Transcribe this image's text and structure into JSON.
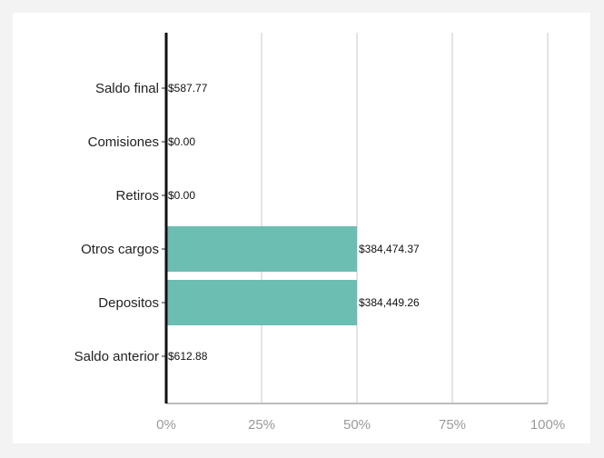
{
  "chart_data": {
    "type": "bar",
    "orientation": "horizontal",
    "title": "",
    "xlabel": "",
    "ylabel": "",
    "categories": [
      "Saldo final",
      "Comisiones",
      "Retiros",
      "Otros cargos",
      "Depositos",
      "Saldo anterior"
    ],
    "values_pct": [
      0,
      0,
      0,
      50,
      50,
      0
    ],
    "value_labels": [
      "$587.77",
      "$0.00",
      "$0.00",
      "$384,474.37",
      "$384,449.26",
      "$612.88"
    ],
    "x_ticks": [
      "0%",
      "25%",
      "50%",
      "75%",
      "100%"
    ],
    "xlim": [
      0,
      100
    ],
    "grid": "vertical",
    "legend": "none",
    "bar_color": "#6cbdb2"
  }
}
